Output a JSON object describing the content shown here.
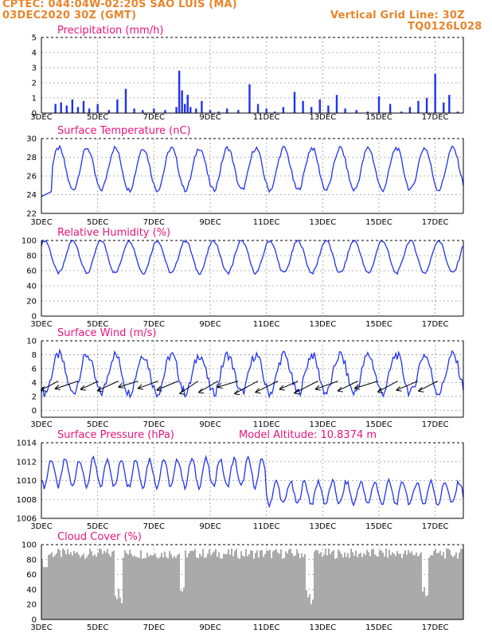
{
  "header": {
    "line1": "CPTEC:   044:04W-02:20S   SAO LUIS (MA)",
    "line2": "03DEC2020 30Z (GMT)",
    "vertical_grid": "Vertical Grid Line: 30Z",
    "model_code": "TQ0126L028"
  },
  "x_labels": [
    "3DEC",
    "5DEC",
    "7DEC",
    "9DEC",
    "11DEC",
    "13DEC",
    "15DEC",
    "17DEC"
  ],
  "colors": {
    "header": "#e8852a",
    "title": "#e8147a",
    "line": "#2233ee",
    "bar": "#2233ee",
    "cloud": "#aaaaaa"
  },
  "chart_data": [
    {
      "type": "bar",
      "title": "Precipitation (mm/h)",
      "ylim": [
        0,
        5
      ],
      "yticks": [
        "0",
        "1",
        "2",
        "3",
        "4",
        "5"
      ],
      "days": [
        3.5,
        3.7,
        3.9,
        4.1,
        4.3,
        4.5,
        4.7,
        5.0,
        5.4,
        5.7,
        6.0,
        6.3,
        6.6,
        7.0,
        7.4,
        7.8,
        7.9,
        8.0,
        8.1,
        8.2,
        8.3,
        8.5,
        8.7,
        9.0,
        9.3,
        9.6,
        10.0,
        10.4,
        10.7,
        11.0,
        11.3,
        11.6,
        12.0,
        12.3,
        12.6,
        12.9,
        13.2,
        13.5,
        13.8,
        14.2,
        14.6,
        15.0,
        15.4,
        15.8,
        16.1,
        16.4,
        16.7,
        17.0,
        17.3,
        17.5,
        17.8
      ],
      "values": [
        0.6,
        0.7,
        0.5,
        0.9,
        0.4,
        0.8,
        0.3,
        0.6,
        0.2,
        0.9,
        1.6,
        0.3,
        0.2,
        0.3,
        0.2,
        0.4,
        2.8,
        1.5,
        0.6,
        1.2,
        0.4,
        0.3,
        0.8,
        0.2,
        0.1,
        0.3,
        0.2,
        1.9,
        0.6,
        0.3,
        0.1,
        0.4,
        1.4,
        0.8,
        0.4,
        0.9,
        0.5,
        1.2,
        0.3,
        0.2,
        0.1,
        1.1,
        0.6,
        0.1,
        0.4,
        0.8,
        1.0,
        2.6,
        0.7,
        1.2,
        0.1
      ]
    },
    {
      "type": "line",
      "title": "Surface Temperature (nC)",
      "ylim": [
        22,
        30
      ],
      "yticks": [
        "22",
        "24",
        "26",
        "28",
        "30"
      ],
      "series": [
        {
          "daily_min": 24.5,
          "daily_max": 29.0,
          "start_day": 3.0,
          "end_day": 18.0
        }
      ]
    },
    {
      "type": "line",
      "title": "Relative Humidity (%)",
      "ylim": [
        0,
        100
      ],
      "yticks": [
        "0",
        "20",
        "40",
        "60",
        "80",
        "100"
      ],
      "series": [
        {
          "daily_min": 57,
          "daily_max": 100,
          "start_day": 3.0,
          "end_day": 18.0
        }
      ]
    },
    {
      "type": "line",
      "title": "Surface Wind (m/s)",
      "ylim": [
        -1,
        10
      ],
      "yticks": [
        "0",
        "2",
        "4",
        "6",
        "8",
        "10"
      ],
      "series": [
        {
          "daily_min": 2.5,
          "daily_max": 8.0,
          "start_day": 3.0,
          "end_day": 18.0
        }
      ],
      "vectors": {
        "direction": "from east-northeast",
        "count": 20
      }
    },
    {
      "type": "line",
      "title": "Surface Pressure (hPa)",
      "annotation": "Model Altitude: 10.8374 m",
      "ylim": [
        1006,
        1014
      ],
      "yticks": [
        "1006",
        "1008",
        "1010",
        "1012",
        "1014"
      ],
      "series": [
        {
          "range_early": [
            1007.5,
            1012.8
          ],
          "range_late": [
            1006,
            1010.3
          ],
          "start_day": 3.0,
          "end_day": 18.0
        }
      ]
    },
    {
      "type": "bar",
      "title": "Cloud Cover (%)",
      "ylim": [
        0,
        100
      ],
      "yticks": [
        "0",
        "20",
        "40",
        "60",
        "80",
        "100"
      ],
      "typical_value": 88
    }
  ]
}
